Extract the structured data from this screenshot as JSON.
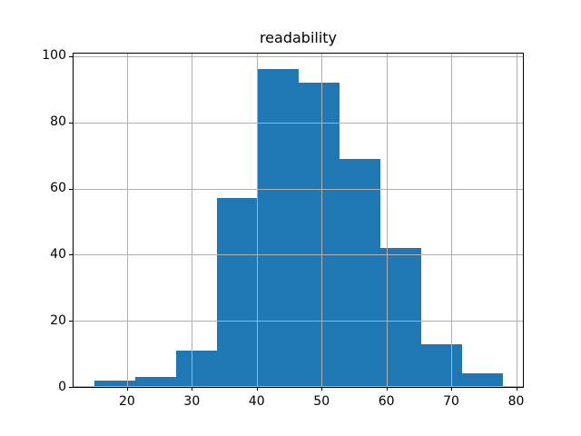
{
  "chart_data": {
    "type": "bar",
    "variant": "histogram",
    "title": "readability",
    "xlabel": "",
    "ylabel": "",
    "bin_edges": [
      14.9,
      21.2,
      27.5,
      33.8,
      40.1,
      46.4,
      52.7,
      59.0,
      65.3,
      71.6,
      77.9
    ],
    "values": [
      2,
      3,
      11,
      57,
      96,
      92,
      69,
      42,
      13,
      4
    ],
    "x_ticks": [
      20,
      30,
      40,
      50,
      60,
      70,
      80
    ],
    "y_ticks": [
      0,
      20,
      40,
      60,
      80,
      100
    ],
    "xlim": [
      11.75,
      81.05
    ],
    "ylim": [
      0,
      100.8
    ],
    "grid": true,
    "grid_above_bars": true,
    "legend": false,
    "colors": {
      "bar": "#1f77b4",
      "grid": "#b0b0b0",
      "spine": "#000000",
      "background": "#ffffff",
      "text": "#000000"
    }
  }
}
